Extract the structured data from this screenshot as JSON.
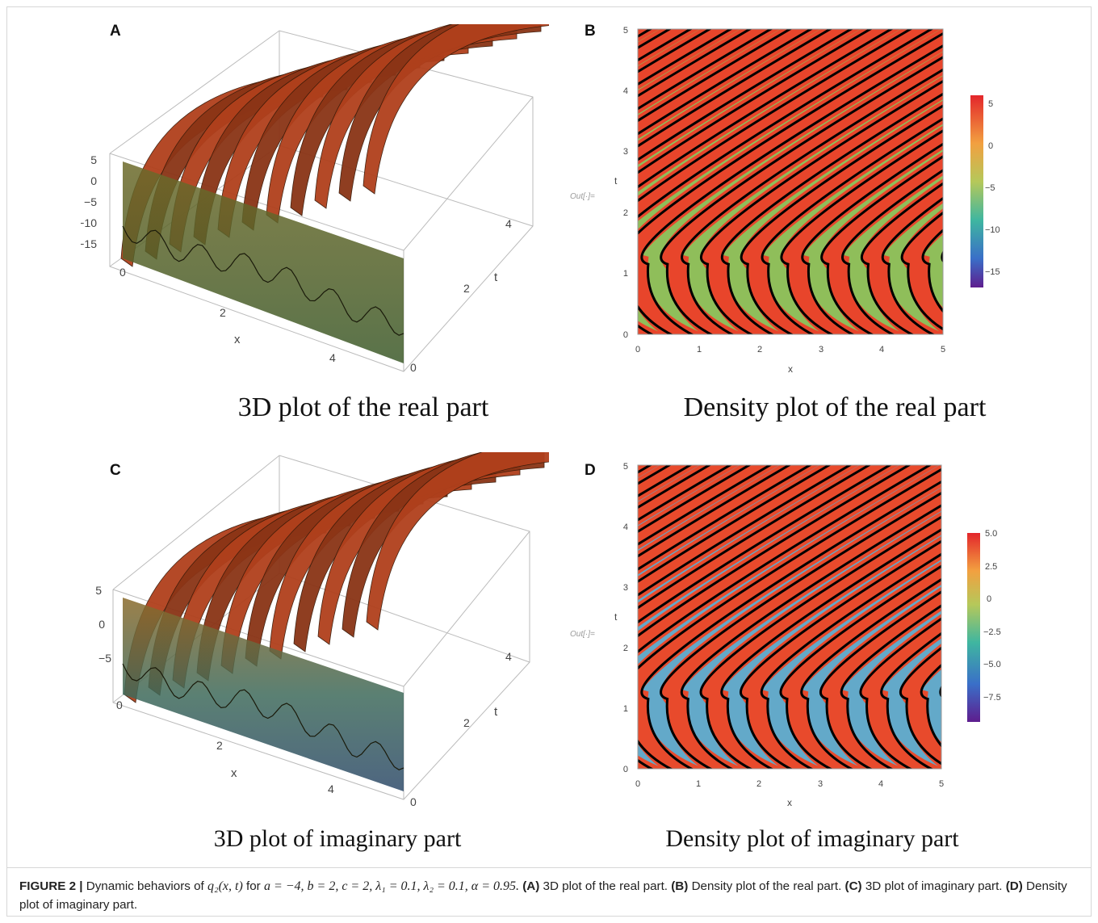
{
  "panels": {
    "A": {
      "letter": "A",
      "caption": "3D plot of the real part",
      "z_ticks": [
        "5",
        "0",
        "−5",
        "−10",
        "−15"
      ],
      "x_ticks": [
        "0",
        "2",
        "4"
      ],
      "t_ticks": [
        "0",
        "2",
        "4"
      ],
      "x_label": "x",
      "t_label": "t"
    },
    "B": {
      "letter": "B",
      "caption": "Density plot of the real part",
      "x_ticks": [
        "0",
        "1",
        "2",
        "3",
        "4",
        "5"
      ],
      "y_ticks": [
        "0",
        "1",
        "2",
        "3",
        "4",
        "5"
      ],
      "x_label": "x",
      "y_label": "t",
      "out_label": "Out[·]=",
      "legend_ticks": [
        "5",
        "0",
        "−5",
        "−10",
        "−15"
      ]
    },
    "C": {
      "letter": "C",
      "caption": "3D plot of imaginary part",
      "z_ticks": [
        "5",
        "0",
        "−5"
      ],
      "x_ticks": [
        "0",
        "2",
        "4"
      ],
      "t_ticks": [
        "0",
        "2",
        "4"
      ],
      "x_label": "x",
      "t_label": "t"
    },
    "D": {
      "letter": "D",
      "caption": "Density plot of imaginary part",
      "x_ticks": [
        "0",
        "1",
        "2",
        "3",
        "4",
        "5"
      ],
      "y_ticks": [
        "0",
        "1",
        "2",
        "3",
        "4",
        "5"
      ],
      "x_label": "x",
      "y_label": "t",
      "out_label": "Out[·]=",
      "legend_ticks": [
        "5.0",
        "2.5",
        "0",
        "−2.5",
        "−5.0",
        "−7.5"
      ]
    }
  },
  "figure_caption": {
    "label": "FIGURE 2 |",
    "intro": " Dynamic behaviors of ",
    "func": "q₂(x, t)",
    "for_word": " for ",
    "params": "a = −4, b = 2, c = 2, λ₁ = 0.1, λ₂ = 0.1, α = 0.95.",
    "items": [
      {
        "label": " (A)",
        "text": " 3D plot of the real part."
      },
      {
        "label": " (B)",
        "text": " Density plot of the real part."
      },
      {
        "label": " (C)",
        "text": " 3D plot of imaginary part."
      },
      {
        "label": " (D)",
        "text": " Density plot of imaginary part."
      }
    ]
  },
  "colors": {
    "real_band_high": "#e8452b",
    "real_band_low": "#8fbe5a",
    "imag_band_high": "#e84a2c",
    "imag_band_low": "#63a9c9",
    "contour": "#000000",
    "surface_dark": "#6a2a12"
  }
}
